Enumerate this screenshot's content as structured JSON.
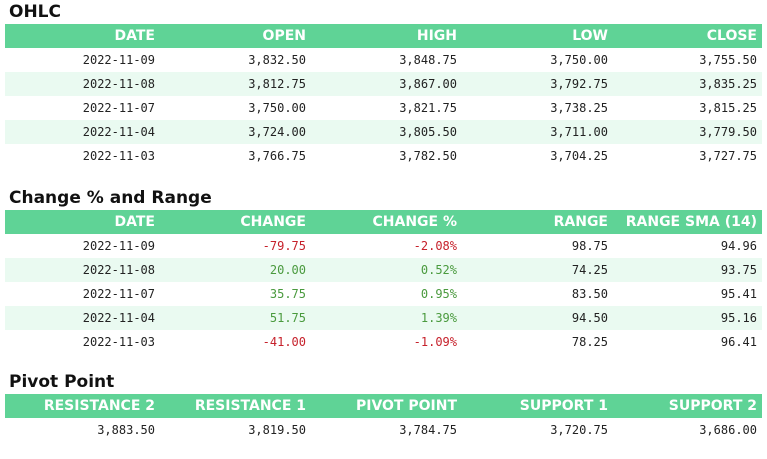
{
  "ohlc": {
    "title": "OHLC",
    "headers": [
      "DATE",
      "OPEN",
      "HIGH",
      "LOW",
      "CLOSE"
    ],
    "rows": [
      [
        "2022-11-09",
        "3,832.50",
        "3,848.75",
        "3,750.00",
        "3,755.50"
      ],
      [
        "2022-11-08",
        "3,812.75",
        "3,867.00",
        "3,792.75",
        "3,835.25"
      ],
      [
        "2022-11-07",
        "3,750.00",
        "3,821.75",
        "3,738.25",
        "3,815.25"
      ],
      [
        "2022-11-04",
        "3,724.00",
        "3,805.50",
        "3,711.00",
        "3,779.50"
      ],
      [
        "2022-11-03",
        "3,766.75",
        "3,782.50",
        "3,704.25",
        "3,727.75"
      ]
    ]
  },
  "change": {
    "title": "Change % and Range",
    "headers": [
      "DATE",
      "CHANGE",
      "CHANGE %",
      "RANGE",
      "RANGE SMA (14)"
    ],
    "rows": [
      [
        "2022-11-09",
        "-79.75",
        "-2.08%",
        "98.75",
        "94.96"
      ],
      [
        "2022-11-08",
        "20.00",
        "0.52%",
        "74.25",
        "93.75"
      ],
      [
        "2022-11-07",
        "35.75",
        "0.95%",
        "83.50",
        "95.41"
      ],
      [
        "2022-11-04",
        "51.75",
        "1.39%",
        "94.50",
        "95.16"
      ],
      [
        "2022-11-03",
        "-41.00",
        "-1.09%",
        "78.25",
        "96.41"
      ]
    ],
    "direction": [
      "neg",
      "pos",
      "pos",
      "pos",
      "neg"
    ]
  },
  "pivot": {
    "title": "Pivot Point",
    "headers": [
      "RESISTANCE 2",
      "RESISTANCE 1",
      "PIVOT POINT",
      "SUPPORT 1",
      "SUPPORT 2"
    ],
    "values": [
      "3,883.50",
      "3,819.50",
      "3,784.75",
      "3,720.75",
      "3,686.00"
    ]
  },
  "colors": {
    "header_bg": "#5fd396",
    "alt_row_bg": "#eafaf1",
    "positive": "#4a9a3e",
    "negative": "#c6212b"
  }
}
